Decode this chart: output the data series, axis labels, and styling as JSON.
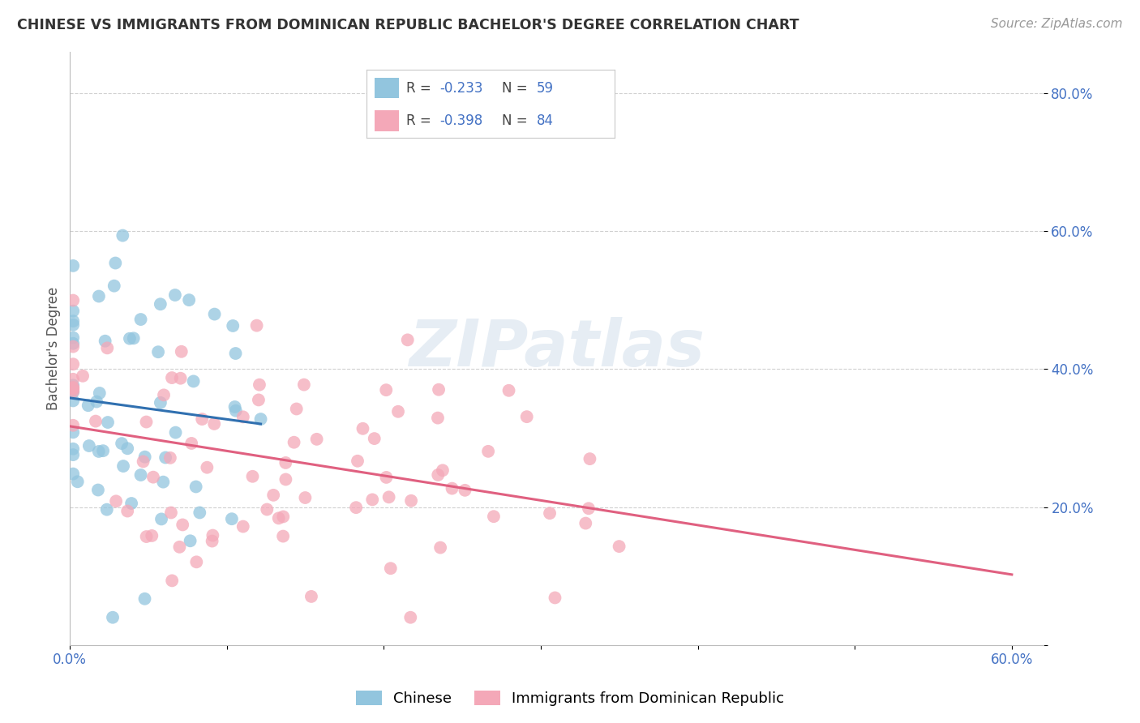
{
  "title": "CHINESE VS IMMIGRANTS FROM DOMINICAN REPUBLIC BACHELOR'S DEGREE CORRELATION CHART",
  "source": "Source: ZipAtlas.com",
  "ylabel": "Bachelor's Degree",
  "xlim": [
    0.0,
    0.62
  ],
  "ylim": [
    0.0,
    0.86
  ],
  "color_chinese": "#92c5de",
  "color_dominican": "#f4a8b8",
  "trendline_chinese": "#3070b0",
  "trendline_dominican": "#e06080",
  "R_chinese": -0.233,
  "N_chinese": 59,
  "R_dominican": -0.398,
  "N_dominican": 84,
  "legend_label1": "Chinese",
  "legend_label2": "Immigrants from Dominican Republic",
  "watermark_text": "ZIPatlas",
  "bg_color": "#ffffff",
  "grid_color": "#d0d0d0",
  "tick_color": "#4472c4",
  "title_color": "#333333",
  "source_color": "#999999",
  "ylabel_color": "#555555"
}
